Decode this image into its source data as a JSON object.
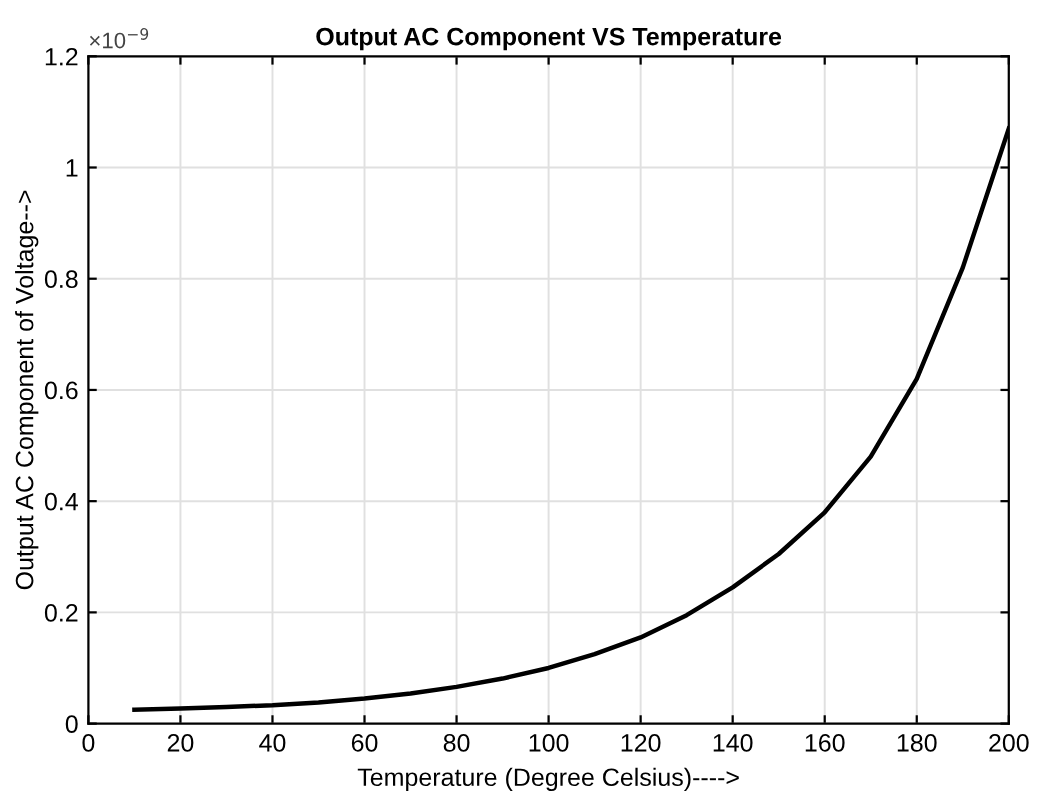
{
  "chart_data": {
    "type": "line",
    "title": "Output AC Component VS Temperature",
    "xlabel": "Temperature (Degree Celsius)---->",
    "ylabel": "Output AC Component of Voltage-->",
    "annotations": [
      "×10$^{−9}$"
    ],
    "x": [
      10,
      20,
      30,
      40,
      50,
      60,
      70,
      80,
      90,
      100,
      110,
      120,
      130,
      140,
      150,
      160,
      170,
      180,
      190,
      200
    ],
    "series": [
      {
        "color": "#000000",
        "values": [
          0.025,
          0.027,
          0.03,
          0.033,
          0.038,
          0.045,
          0.054,
          0.066,
          0.081,
          0.1,
          0.125,
          0.155,
          0.195,
          0.245,
          0.305,
          0.38,
          0.48,
          0.62,
          0.82,
          1.07
        ]
      }
    ],
    "xlim": [
      0,
      200
    ],
    "ylim": [
      0,
      1.2
    ],
    "xticks": [
      0,
      20,
      40,
      60,
      80,
      100,
      120,
      140,
      160,
      180,
      200
    ],
    "yticks": [
      0,
      0.2,
      0.4,
      0.6,
      0.8,
      1,
      1.2
    ],
    "grid": true,
    "marker": "none",
    "line_style": "solid"
  }
}
